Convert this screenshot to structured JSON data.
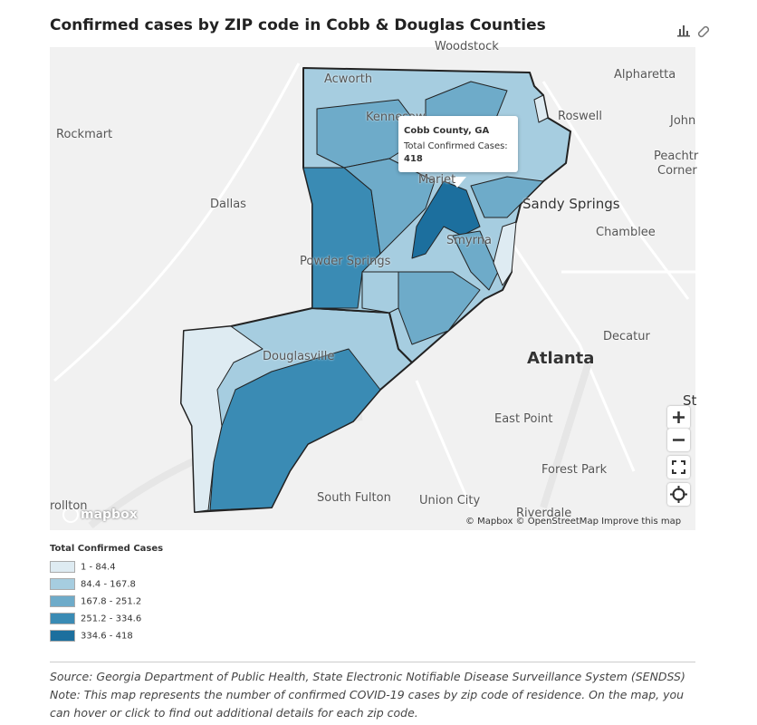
{
  "header": {
    "title": "Confirmed cases by ZIP code in Cobb & Douglas Counties"
  },
  "map": {
    "places": [
      "Woodstock",
      "Acworth",
      "Alpharetta",
      "Roswell",
      "John",
      "Rockmart",
      "Kennesaw",
      "Peachtr",
      "Corner",
      "Dallas",
      "Mariet",
      "Sandy Springs",
      "Chamblee",
      "Smyrna",
      "Powder Springs",
      "Douglasville",
      "Decatur",
      "Atlanta",
      "St",
      "East Point",
      "Forest Park",
      "South Fulton",
      "Union City",
      "Riverdale",
      "rollton"
    ]
  },
  "tooltip": {
    "title": "Cobb County, GA",
    "label": "Total Confirmed Cases:",
    "value": 418
  },
  "attribution": {
    "logo": "mapbox",
    "text": "© Mapbox © OpenStreetMap",
    "link": "Improve this map"
  },
  "legend": {
    "title": "Total Confirmed Cases",
    "items": [
      {
        "label": "1 - 84.4",
        "color": "#deebf2"
      },
      {
        "label": "84.4 - 167.8",
        "color": "#a6cde0"
      },
      {
        "label": "167.8 - 251.2",
        "color": "#6eabc9"
      },
      {
        "label": "251.2 - 334.6",
        "color": "#3a8bb4"
      },
      {
        "label": "334.6 - 418",
        "color": "#1c6f9e"
      }
    ]
  },
  "footer": {
    "source": "Source: Georgia Department of Public Health, State Electronic Notifiable Disease Surveillance System (SENDSS)",
    "note": "Note: This map represents the number of confirmed COVID-19 cases by zip code of residence.  On the map, you can hover or click to find out additional details for each zip code."
  }
}
